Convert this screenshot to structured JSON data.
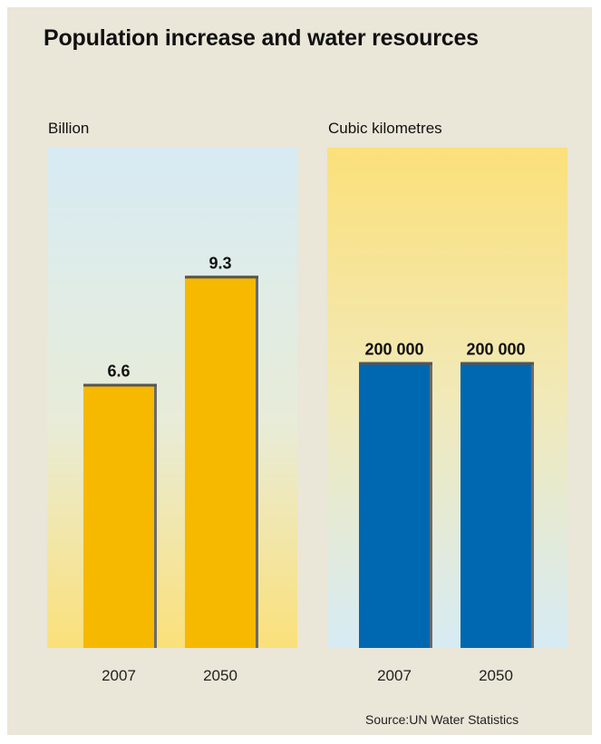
{
  "title": "Population increase and water resources",
  "source": "Source:UN Water Statistics",
  "colors": {
    "frame": "#eae6d8",
    "population_bar": "#f6b900",
    "water_bar": "#0068b0",
    "bar_top": "#555555",
    "panel_blue": "#d7ebf4",
    "panel_yellow": "#fbe07a"
  },
  "chart_data": [
    {
      "type": "bar",
      "ylabel": "Billion",
      "categories": [
        "2007",
        "2050"
      ],
      "values": [
        6.6,
        9.3
      ],
      "value_labels": [
        "6.6",
        "9.3"
      ],
      "ylim": [
        0,
        12.5
      ],
      "grid": false,
      "legend": "none",
      "bar_color": "#f6b900",
      "background": "blue-top-to-yellow-bottom"
    },
    {
      "type": "bar",
      "ylabel": "Cubic kilometres",
      "categories": [
        "2007",
        "2050"
      ],
      "values": [
        200000,
        200000
      ],
      "value_labels": [
        "200 000",
        "200 000"
      ],
      "ylim": [
        0,
        350000
      ],
      "grid": false,
      "legend": "none",
      "bar_color": "#0068b0",
      "background": "yellow-top-to-blue-bottom"
    }
  ]
}
